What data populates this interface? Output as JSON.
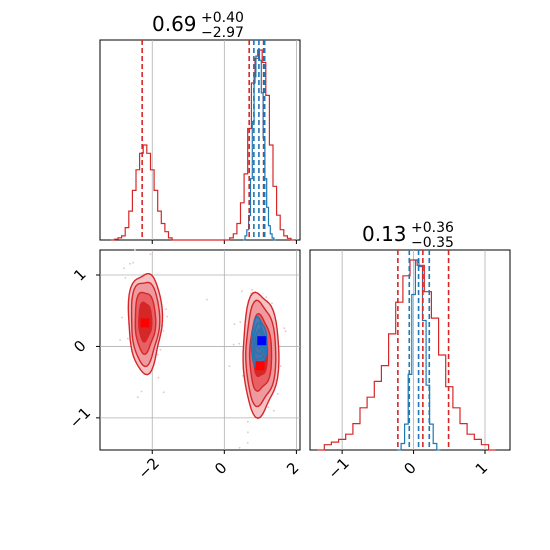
{
  "chart_data": [
    {
      "type": "histogram",
      "panel": "x-marginal",
      "title": {
        "value": "0.69",
        "upper": "+0.40",
        "lower": "−2.97"
      },
      "xlim": [
        -3.45,
        2.1
      ],
      "x_ticks": [
        -2,
        0,
        2
      ],
      "grid": true,
      "colors": {
        "red": "#d62728",
        "blue": "#1f77b4"
      },
      "series": [
        {
          "color": "red",
          "bins": [
            [
              -3.1,
              0.0
            ],
            [
              -3.0,
              0.002
            ],
            [
              -2.9,
              0.005
            ],
            [
              -2.8,
              0.01
            ],
            [
              -2.7,
              0.03
            ],
            [
              -2.6,
              0.07
            ],
            [
              -2.5,
              0.12
            ],
            [
              -2.4,
              0.17
            ],
            [
              -2.3,
              0.21
            ],
            [
              -2.2,
              0.23
            ],
            [
              -2.1,
              0.21
            ],
            [
              -2.0,
              0.17
            ],
            [
              -1.9,
              0.12
            ],
            [
              -1.8,
              0.07
            ],
            [
              -1.7,
              0.04
            ],
            [
              -1.6,
              0.02
            ],
            [
              -1.5,
              0.005
            ],
            [
              -1.4,
              0.0
            ],
            [
              0.1,
              0.0
            ],
            [
              0.2,
              0.005
            ],
            [
              0.3,
              0.015
            ],
            [
              0.4,
              0.04
            ],
            [
              0.5,
              0.09
            ],
            [
              0.6,
              0.16
            ],
            [
              0.7,
              0.27
            ],
            [
              0.8,
              0.38
            ],
            [
              0.9,
              0.44
            ],
            [
              1.0,
              0.46
            ],
            [
              1.1,
              0.43
            ],
            [
              1.2,
              0.35
            ],
            [
              1.3,
              0.23
            ],
            [
              1.4,
              0.13
            ],
            [
              1.5,
              0.06
            ],
            [
              1.6,
              0.025
            ],
            [
              1.7,
              0.01
            ],
            [
              1.8,
              0.004
            ],
            [
              1.9,
              0.0
            ]
          ],
          "quantiles": [
            -2.28,
            0.69,
            1.09
          ]
        },
        {
          "color": "blue",
          "bins": [
            [
              0.55,
              0.0
            ],
            [
              0.6,
              0.02
            ],
            [
              0.65,
              0.05
            ],
            [
              0.7,
              0.12
            ],
            [
              0.75,
              0.3
            ],
            [
              0.8,
              0.58
            ],
            [
              0.85,
              0.8
            ],
            [
              0.9,
              0.9
            ],
            [
              0.95,
              0.93
            ],
            [
              1.0,
              0.88
            ],
            [
              1.05,
              0.72
            ],
            [
              1.1,
              0.5
            ],
            [
              1.15,
              0.3
            ],
            [
              1.2,
              0.16
            ],
            [
              1.25,
              0.07
            ],
            [
              1.3,
              0.03
            ],
            [
              1.35,
              0.01
            ],
            [
              1.4,
              0.0
            ]
          ],
          "quantiles": [
            0.82,
            0.96,
            1.12
          ]
        }
      ]
    },
    {
      "type": "contour",
      "panel": "joint",
      "xlim": [
        -3.45,
        2.1
      ],
      "ylim": [
        -1.45,
        1.35
      ],
      "x_ticks": [
        -2,
        0,
        2
      ],
      "y_ticks": [
        1,
        0,
        -1
      ],
      "grid": true,
      "series": [
        {
          "color": "red",
          "modes": [
            {
              "cx": -2.2,
              "cy": 0.35,
              "sx": 0.3,
              "sy": 0.45
            },
            {
              "cx": 1.0,
              "cy": -0.1,
              "sx": 0.32,
              "sy": 0.55
            }
          ],
          "marker": {
            "x": 0.99,
            "y": -0.27
          },
          "marker2": {
            "x": -2.2,
            "y": 0.33
          }
        },
        {
          "color": "blue",
          "modes": [
            {
              "cx": 0.96,
              "cy": 0.05,
              "sx": 0.18,
              "sy": 0.28
            }
          ],
          "marker": {
            "x": 1.04,
            "y": 0.08
          }
        }
      ]
    },
    {
      "type": "histogram",
      "panel": "y-marginal",
      "title": {
        "value": "0.13",
        "upper": "+0.36",
        "lower": "−0.35"
      },
      "xlim": [
        -1.45,
        1.35
      ],
      "x_ticks": [
        -1,
        0,
        1
      ],
      "grid": true,
      "series": [
        {
          "color": "red",
          "bins": [
            [
              -1.3,
              0.0
            ],
            [
              -1.2,
              0.01
            ],
            [
              -1.1,
              0.015
            ],
            [
              -1.0,
              0.02
            ],
            [
              -0.9,
              0.03
            ],
            [
              -0.8,
              0.05
            ],
            [
              -0.7,
              0.08
            ],
            [
              -0.6,
              0.1
            ],
            [
              -0.5,
              0.13
            ],
            [
              -0.4,
              0.16
            ],
            [
              -0.3,
              0.22
            ],
            [
              -0.2,
              0.28
            ],
            [
              -0.1,
              0.33
            ],
            [
              0.0,
              0.36
            ],
            [
              0.1,
              0.35
            ],
            [
              0.2,
              0.3
            ],
            [
              0.3,
              0.25
            ],
            [
              0.4,
              0.18
            ],
            [
              0.5,
              0.12
            ],
            [
              0.6,
              0.08
            ],
            [
              0.7,
              0.05
            ],
            [
              0.8,
              0.03
            ],
            [
              0.9,
              0.02
            ],
            [
              1.0,
              0.01
            ],
            [
              1.1,
              0.0
            ]
          ],
          "quantiles": [
            -0.22,
            0.13,
            0.49
          ]
        },
        {
          "color": "blue",
          "bins": [
            [
              -0.2,
              0.0
            ],
            [
              -0.15,
              0.03
            ],
            [
              -0.1,
              0.12
            ],
            [
              -0.05,
              0.35
            ],
            [
              0.0,
              0.72
            ],
            [
              0.05,
              0.88
            ],
            [
              0.1,
              0.85
            ],
            [
              0.15,
              0.6
            ],
            [
              0.2,
              0.3
            ],
            [
              0.25,
              0.12
            ],
            [
              0.3,
              0.03
            ],
            [
              0.35,
              0.0
            ]
          ],
          "quantiles": [
            -0.06,
            0.07,
            0.22
          ]
        }
      ]
    }
  ],
  "titles": {
    "top": {
      "value": "0.69",
      "upper": "+0.40",
      "lower": "−2.97"
    },
    "right": {
      "value": "0.13",
      "upper": "+0.36",
      "lower": "−0.35"
    }
  },
  "ticks": {
    "x_top": [
      "−2",
      "0",
      "2"
    ],
    "y_left": [
      "1",
      "0",
      "−1"
    ],
    "x_right": [
      "−1",
      "0",
      "1"
    ]
  }
}
